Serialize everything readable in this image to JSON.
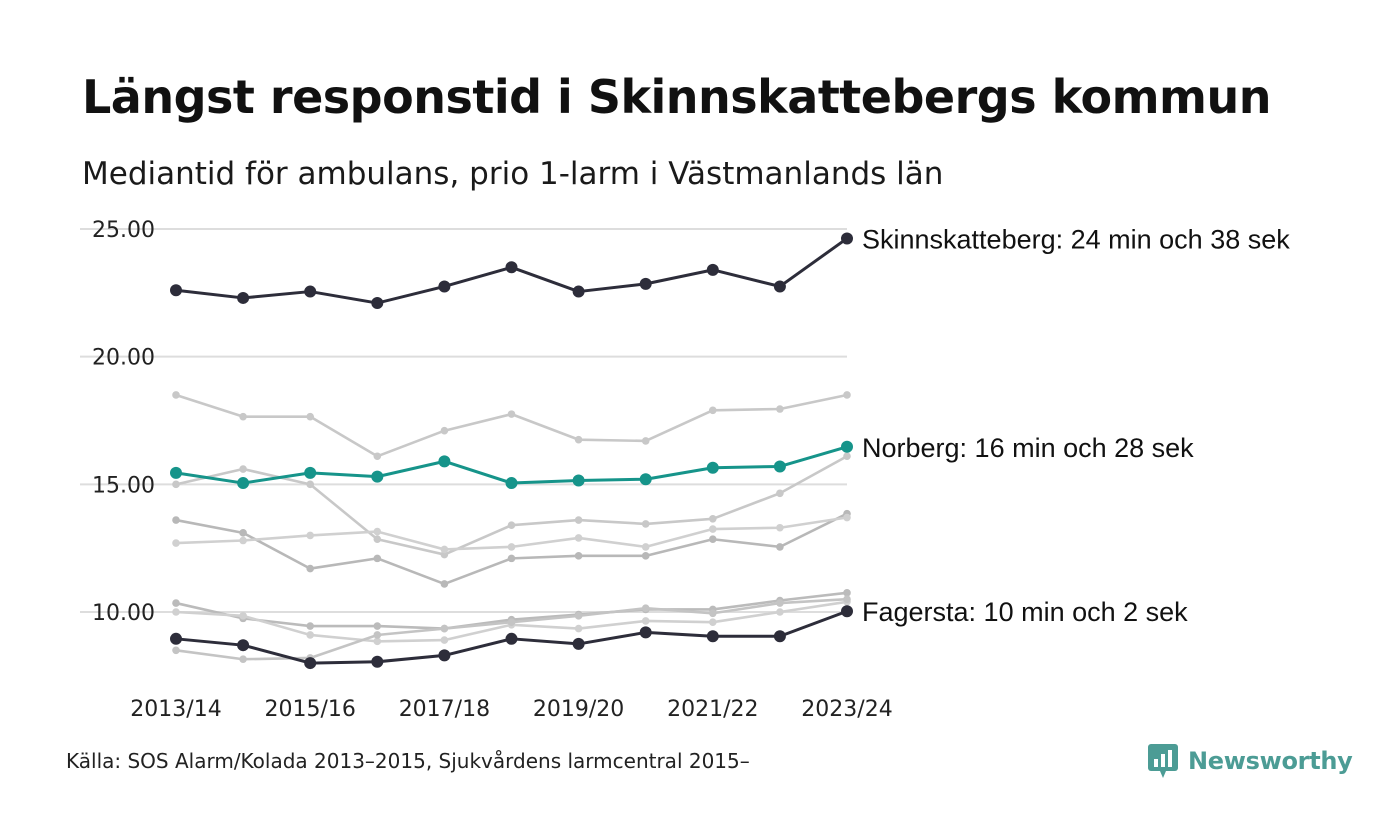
{
  "title": "Längst responstid i Skinnskattebergs kommun",
  "subtitle": "Mediantid för ambulans, prio 1-larm i Västmanlands län",
  "source": "Källa: SOS Alarm/Kolada 2013–2015, Sjukvårdens larmcentral 2015–",
  "logo": {
    "text": "Newsworthy",
    "icon": "newsworthy-chart-bubble-icon",
    "color": "#4c9c95"
  },
  "colors": {
    "highlight_dark": "#2d2d3a",
    "highlight_teal": "#16948a",
    "background_series": "#c8c8c8",
    "grid": "#dddddd"
  },
  "chart_data": {
    "type": "line",
    "x": [
      "2013/14",
      "2014/15",
      "2015/16",
      "2016/17",
      "2017/18",
      "2018/19",
      "2019/20",
      "2020/21",
      "2021/22",
      "2022/23",
      "2023/24"
    ],
    "x_tick_labels": [
      "2013/14",
      "2015/16",
      "2017/18",
      "2019/20",
      "2021/22",
      "2023/24"
    ],
    "y_ticks": [
      "10.00",
      "15.00",
      "20.00",
      "25.00"
    ],
    "ylim": [
      7.5,
      25.5
    ],
    "grid": "horizontal",
    "series": [
      {
        "values": [
          18.5,
          17.65,
          17.65,
          16.1,
          17.1,
          17.75,
          16.75,
          16.7,
          17.9,
          17.95,
          18.5
        ],
        "color": "#c8c8c8"
      },
      {
        "values": [
          15.0,
          15.6,
          15.0,
          12.85,
          12.25,
          13.4,
          13.6,
          13.45,
          13.65,
          14.65,
          16.1
        ],
        "color": "#c8c8c8"
      },
      {
        "values": [
          13.6,
          13.1,
          11.7,
          12.1,
          11.1,
          12.1,
          12.2,
          12.2,
          12.85,
          12.55,
          13.85
        ],
        "color": "#b8b8b8"
      },
      {
        "values": [
          12.7,
          12.8,
          13.0,
          13.15,
          12.45,
          12.55,
          12.9,
          12.55,
          13.25,
          13.3,
          13.7
        ],
        "color": "#d0d0d0"
      },
      {
        "values": [
          10.35,
          9.75,
          9.45,
          9.45,
          9.35,
          9.7,
          9.9,
          10.1,
          10.1,
          10.45,
          10.75
        ],
        "color": "#bbbbbb"
      },
      {
        "values": [
          10.0,
          9.85,
          9.1,
          8.85,
          8.9,
          9.5,
          9.35,
          9.65,
          9.6,
          10.0,
          10.4
        ],
        "color": "#d0d0d0"
      },
      {
        "values": [
          8.5,
          8.15,
          8.2,
          9.1,
          9.35,
          9.6,
          9.85,
          10.15,
          9.95,
          10.35,
          10.5
        ],
        "color": "#c4c4c4"
      },
      {
        "name": "Skinnskatteberg",
        "label": "Skinnskatteberg: 24 min och 38 sek",
        "values": [
          22.6,
          22.3,
          22.55,
          22.1,
          22.75,
          23.5,
          22.55,
          22.85,
          23.4,
          22.75,
          24.63
        ],
        "color": "#2d2d3a",
        "highlight": true
      },
      {
        "name": "Norberg",
        "label": "Norberg: 16 min och 28 sek",
        "values": [
          15.45,
          15.05,
          15.45,
          15.3,
          15.9,
          15.05,
          15.15,
          15.2,
          15.65,
          15.7,
          16.47
        ],
        "color": "#16948a",
        "highlight": true
      },
      {
        "name": "Fagersta",
        "label": "Fagersta: 10 min och 2 sek",
        "values": [
          8.95,
          8.7,
          8.0,
          8.05,
          8.3,
          8.95,
          8.75,
          9.2,
          9.05,
          9.05,
          10.03
        ],
        "color": "#2d2d3a",
        "highlight": true
      }
    ]
  }
}
